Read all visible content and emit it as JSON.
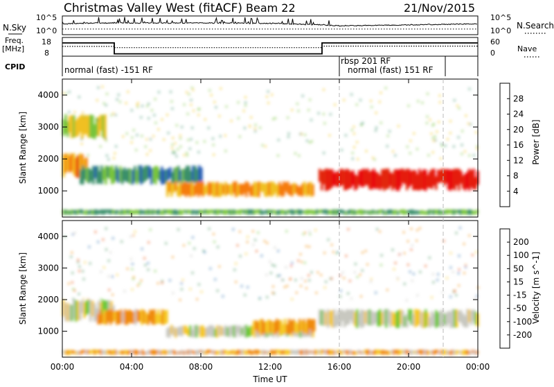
{
  "header": {
    "title": "Christmas Valley West (fitACF)",
    "beam": "Beam 22",
    "date": "21/Nov/2015"
  },
  "labels": {
    "nsky": "N.Sky",
    "nsearch": "N.Search",
    "freq_line1": "Freq.",
    "freq_line2": "[MHz]",
    "nave": "Nave",
    "cpid": "CPID",
    "nsky_top": "10^5",
    "nsky_bottom": "10^0",
    "nsearch_top": "10^5",
    "nsearch_bottom": "10^0",
    "freq_top": "18",
    "freq_bottom": "8",
    "nave_top": "60",
    "nave_bottom": "0"
  },
  "cpid_segments": [
    "normal (fast) -151 RF",
    "rbsp 201 RF",
    "normal (fast) 151 RF"
  ],
  "x_axis": {
    "title": "Time UT",
    "ticks": [
      "00:00",
      "04:00",
      "08:00",
      "12:00",
      "16:00",
      "20:00",
      "00:00"
    ],
    "range_hours": [
      0,
      24
    ]
  },
  "y_axis": {
    "title": "Slant Range [km]",
    "ticks": [
      "1000",
      "2000",
      "3000",
      "4000"
    ],
    "range_km": [
      180,
      4500
    ]
  },
  "power_scale": {
    "title": "Power [dB]",
    "labels": [
      "4",
      "8",
      "12",
      "16",
      "20",
      "24",
      "28"
    ],
    "colors": [
      "#0f22f0",
      "#2a5fb5",
      "#3a8f6a",
      "#78c43a",
      "#f0c020",
      "#f57c10",
      "#e22510",
      "#e81010"
    ]
  },
  "velocity_scale": {
    "title": "Velocity [m s^-1]",
    "labels": [
      "200",
      "100",
      "50",
      "15",
      "-15",
      "-50",
      "-100",
      "-200"
    ],
    "colors": [
      "#1a2de6",
      "#2e6fb0",
      "#3d8f55",
      "#6ec83a",
      "#c8c8c0",
      "#f5c828",
      "#f08a10",
      "#e84a10",
      "#e01010"
    ]
  },
  "chart_data": [
    {
      "type": "heatmap",
      "title": "Power [dB]",
      "xlabel": "Time UT",
      "ylabel": "Slant Range [km]",
      "x_range_hours": [
        0,
        24
      ],
      "y_range_km": [
        180,
        4500
      ],
      "value_range": [
        0,
        30
      ],
      "regions": [
        {
          "t": [
            0.0,
            1.4
          ],
          "range_km": [
            1400,
            2200
          ],
          "power_db": 22
        },
        {
          "t": [
            0.0,
            2.5
          ],
          "range_km": [
            2600,
            3400
          ],
          "power_db": 16
        },
        {
          "t": [
            1.0,
            8.0
          ],
          "range_km": [
            1200,
            1800
          ],
          "power_db": 10
        },
        {
          "t": [
            6.0,
            14.5
          ],
          "range_km": [
            800,
            1300
          ],
          "power_db": 20
        },
        {
          "t": [
            14.8,
            24.0
          ],
          "range_km": [
            1000,
            1700
          ],
          "power_db": 28
        },
        {
          "t": [
            0.0,
            24.0
          ],
          "range_km": [
            250,
            420
          ],
          "power_db": 12
        }
      ],
      "markers_hours": [
        16.0,
        22.0
      ]
    },
    {
      "type": "heatmap",
      "title": "Velocity [m s^-1]",
      "xlabel": "Time UT",
      "ylabel": "Slant Range [km]",
      "x_range_hours": [
        0,
        24
      ],
      "y_range_km": [
        180,
        4500
      ],
      "value_range": [
        -200,
        200
      ],
      "regions": [
        {
          "t": [
            0.0,
            3.0
          ],
          "range_km": [
            1300,
            2000
          ],
          "velocity": 0
        },
        {
          "t": [
            2.0,
            6.0
          ],
          "range_km": [
            1200,
            1700
          ],
          "velocity": -40
        },
        {
          "t": [
            6.0,
            14.5
          ],
          "range_km": [
            800,
            1200
          ],
          "velocity": 0
        },
        {
          "t": [
            11.0,
            14.5
          ],
          "range_km": [
            900,
            1400
          ],
          "velocity": -45
        },
        {
          "t": [
            14.8,
            24.0
          ],
          "range_km": [
            1100,
            1700
          ],
          "velocity": 0
        },
        {
          "t": [
            0.0,
            24.0
          ],
          "range_km": [
            250,
            420
          ],
          "velocity": -30
        }
      ],
      "markers_hours": [
        16.0,
        22.0
      ]
    },
    {
      "type": "line",
      "title": "N.Sky / N.Search",
      "series": [
        {
          "name": "N.Sky",
          "x": [
            0,
            2,
            4,
            8,
            12,
            15,
            16,
            20,
            24
          ],
          "y": [
            0.55,
            0.6,
            0.6,
            0.6,
            0.58,
            0.5,
            0.45,
            0.5,
            0.55
          ]
        },
        {
          "name": "N.Search",
          "x": [
            0,
            24
          ],
          "y": [
            0.3,
            0.3
          ]
        }
      ]
    },
    {
      "type": "line",
      "title": "Freq. [MHz] / Nave",
      "series": [
        {
          "name": "Freq.",
          "x": [
            0,
            3.0,
            3.0,
            15.0,
            15.0,
            24
          ],
          "y": [
            15.5,
            15.5,
            8.5,
            8.5,
            15.5,
            15.5
          ]
        },
        {
          "name": "Nave",
          "x": [
            0,
            3.0,
            3.0,
            15.0,
            15.0,
            24
          ],
          "y": [
            18,
            18,
            14,
            14,
            19,
            19
          ]
        }
      ]
    }
  ]
}
